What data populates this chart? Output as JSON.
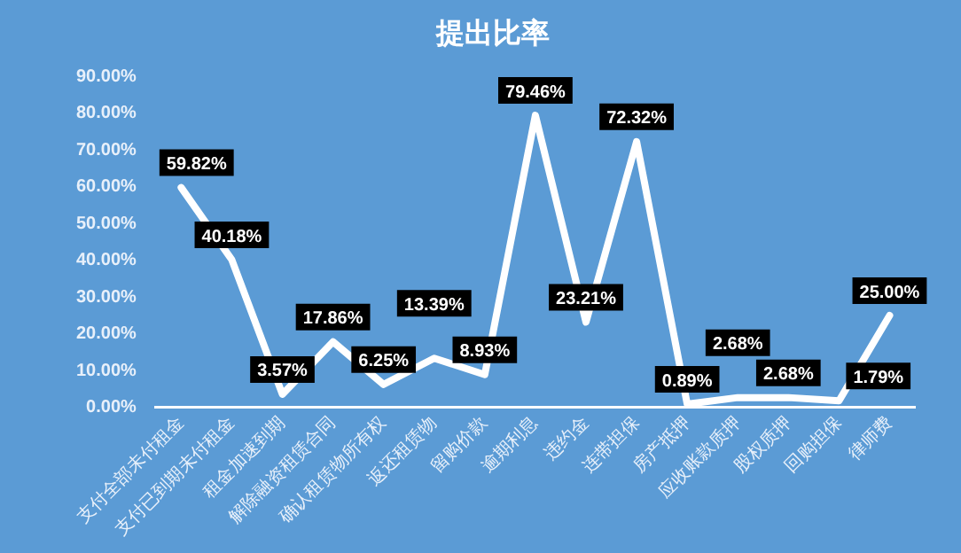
{
  "chart_data": {
    "type": "line",
    "title": "提出比率",
    "categories": [
      "支付全部未付租金",
      "支付已到期未付租金",
      "租金加速到期",
      "解除融资租赁合同",
      "确认租赁物所有权",
      "返还租赁物",
      "留购价款",
      "逾期利息",
      "违约金",
      "连带担保",
      "房产抵押",
      "应收账款质押",
      "股权质押",
      "回购担保",
      "律师费"
    ],
    "series": [
      {
        "color": "#ffffff",
        "values": [
          59.82,
          40.18,
          3.57,
          17.86,
          6.25,
          13.39,
          8.93,
          79.46,
          23.21,
          72.32,
          0.89,
          2.68,
          2.68,
          1.79,
          25.0
        ],
        "value_labels": [
          "59.82%",
          "40.18%",
          "3.57%",
          "17.86%",
          "6.25%",
          "13.39%",
          "8.93%",
          "79.46%",
          "23.21%",
          "72.32%",
          "0.89%",
          "2.68%",
          "2.68%",
          "1.79%",
          "25.00%"
        ]
      }
    ],
    "ylim": [
      0,
      90
    ],
    "yticks": [
      {
        "value": 0,
        "label": "0.00%"
      },
      {
        "value": 10,
        "label": "10.00%"
      },
      {
        "value": 20,
        "label": "20.00%"
      },
      {
        "value": 30,
        "label": "30.00%"
      },
      {
        "value": 40,
        "label": "40.00%"
      },
      {
        "value": 50,
        "label": "50.00%"
      },
      {
        "value": 60,
        "label": "60.00%"
      },
      {
        "value": 70,
        "label": "70.00%"
      },
      {
        "value": 80,
        "label": "80.00%"
      },
      {
        "value": 90,
        "label": "90.00%"
      }
    ],
    "grid": false,
    "legend": false,
    "marker": "none",
    "line_style": "solid"
  }
}
